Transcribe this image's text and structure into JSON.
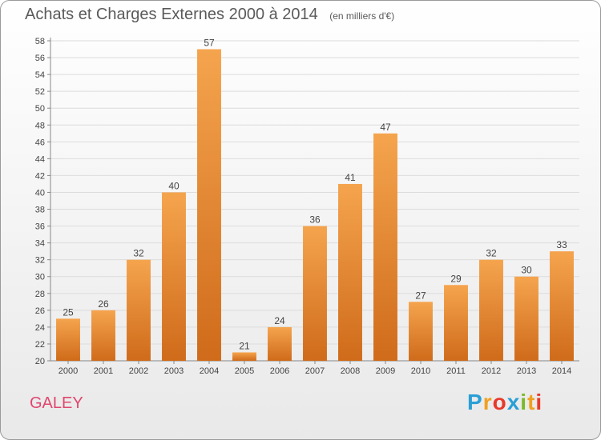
{
  "chart_data": {
    "type": "bar",
    "title": "Achats et Charges Externes 2000 à 2014",
    "unit": "(en milliers d'€)",
    "categories": [
      "2000",
      "2001",
      "2002",
      "2003",
      "2004",
      "2005",
      "2006",
      "2007",
      "2008",
      "2009",
      "2010",
      "2011",
      "2012",
      "2013",
      "2014"
    ],
    "values": [
      25,
      26,
      32,
      40,
      57,
      21,
      24,
      36,
      41,
      47,
      27,
      29,
      32,
      30,
      33
    ],
    "ylim": [
      20,
      58
    ],
    "yticks": [
      20,
      22,
      24,
      26,
      28,
      30,
      32,
      34,
      36,
      38,
      40,
      42,
      44,
      46,
      48,
      50,
      52,
      54,
      56,
      58
    ],
    "grid": true,
    "bar_color_light": "#f5a44e",
    "bar_color_dark": "#cf6b1a"
  },
  "commune": "GALEY",
  "logo": {
    "letters": [
      "P",
      "r",
      "o",
      "x",
      "i",
      "t",
      "i"
    ],
    "colors": [
      "#2a9fd6",
      "#f0a020",
      "#e8392b",
      "#2a9fd6",
      "#7ab929",
      "#f0a020",
      "#e8392b"
    ]
  }
}
